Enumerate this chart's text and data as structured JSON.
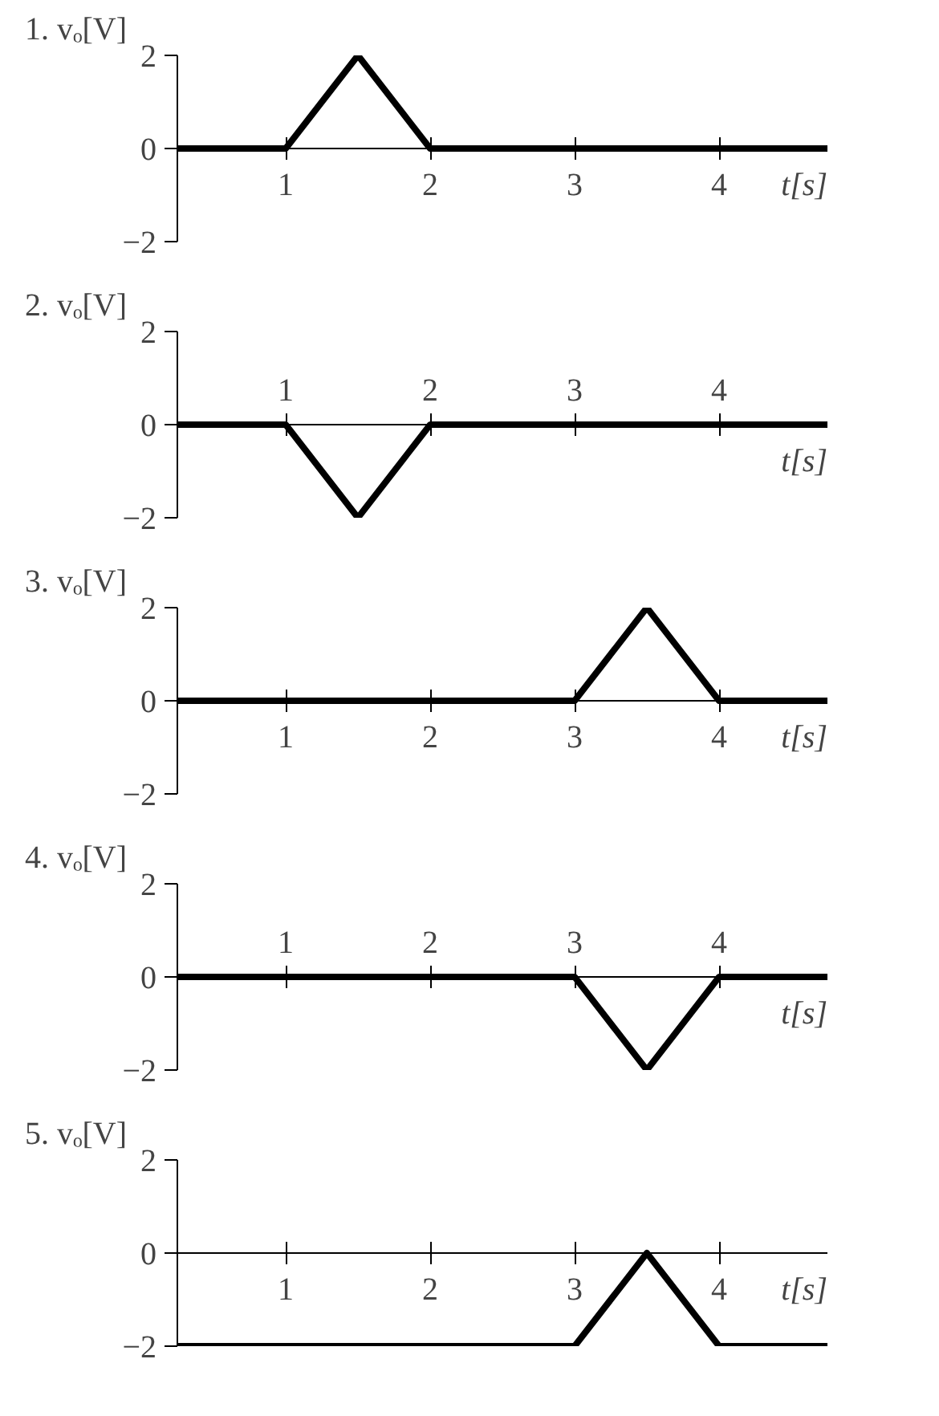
{
  "chart_data": [
    {
      "type": "line",
      "title": "1. vₒ[V]",
      "xlabel": "t[s]",
      "x": [
        0.25,
        1,
        1.5,
        2,
        4.75
      ],
      "series": [
        {
          "color": "#000000",
          "values": [
            0,
            0,
            2,
            0,
            0
          ]
        }
      ],
      "xlim": [
        0.25,
        4.75
      ],
      "xticks": [
        1,
        2,
        3,
        4
      ],
      "ylim": [
        -2,
        2
      ],
      "yticks": [
        2,
        0,
        -2
      ],
      "marker": "none",
      "line_style": "solid"
    },
    {
      "type": "line",
      "title": "2. vₒ[V]",
      "xlabel": "t[s]",
      "x": [
        0.25,
        1,
        1.5,
        2,
        4.75
      ],
      "series": [
        {
          "color": "#000000",
          "values": [
            0,
            0,
            -2,
            0,
            0
          ]
        }
      ],
      "xlim": [
        0.25,
        4.75
      ],
      "xticks": [
        1,
        2,
        3,
        4
      ],
      "ylim": [
        -2,
        2
      ],
      "yticks": [
        2,
        0,
        -2
      ],
      "marker": "none",
      "line_style": "solid"
    },
    {
      "type": "line",
      "title": "3. vₒ[V]",
      "xlabel": "t[s]",
      "x": [
        0.25,
        3,
        3.5,
        4,
        4.75
      ],
      "series": [
        {
          "color": "#000000",
          "values": [
            0,
            0,
            2,
            0,
            0
          ]
        }
      ],
      "xlim": [
        0.25,
        4.75
      ],
      "xticks": [
        1,
        2,
        3,
        4
      ],
      "ylim": [
        -2,
        2
      ],
      "yticks": [
        2,
        0,
        -2
      ],
      "marker": "none",
      "line_style": "solid"
    },
    {
      "type": "line",
      "title": "4. vₒ[V]",
      "xlabel": "t[s]",
      "x": [
        0.25,
        3,
        3.5,
        4,
        4.75
      ],
      "series": [
        {
          "color": "#000000",
          "values": [
            0,
            0,
            -2,
            0,
            0
          ]
        }
      ],
      "xlim": [
        0.25,
        4.75
      ],
      "xticks": [
        1,
        2,
        3,
        4
      ],
      "ylim": [
        -2,
        2
      ],
      "yticks": [
        2,
        0,
        -2
      ],
      "marker": "none",
      "line_style": "solid"
    },
    {
      "type": "line",
      "title": "5. vₒ[V]",
      "xlabel": "t[s]",
      "x": [
        0.25,
        3,
        3.5,
        4,
        4.75
      ],
      "series": [
        {
          "color": "#000000",
          "values": [
            -2,
            -2,
            0,
            -2,
            -2
          ]
        }
      ],
      "xlim": [
        0.25,
        4.75
      ],
      "xticks": [
        1,
        2,
        3,
        4
      ],
      "ylim": [
        -2,
        2
      ],
      "yticks": [
        2,
        0,
        -2
      ],
      "marker": "none",
      "line_style": "solid"
    }
  ]
}
